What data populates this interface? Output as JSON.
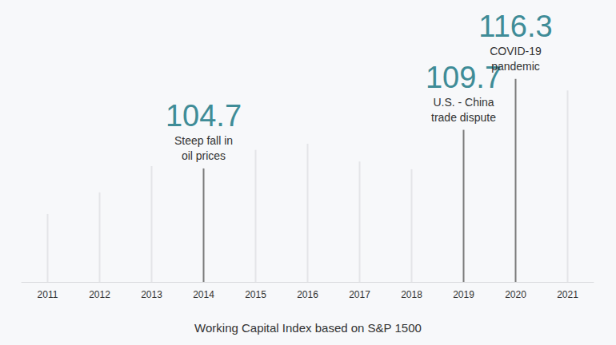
{
  "chart_data": {
    "type": "bar",
    "title": "Working Capital Index based on S&P 1500",
    "categories": [
      "2011",
      "2012",
      "2013",
      "2014",
      "2015",
      "2016",
      "2017",
      "2018",
      "2019",
      "2020",
      "2021"
    ],
    "values": [
      98.8,
      101.6,
      105.0,
      104.7,
      107.1,
      107.9,
      105.6,
      104.6,
      109.7,
      116.3,
      114.8
    ],
    "colors": [
      "#e4e5e8",
      "#e4e5e8",
      "#e4e5e8",
      "#7a7a7a",
      "#e4e5e8",
      "#e4e5e8",
      "#e4e5e8",
      "#e4e5e8",
      "#7a7a7a",
      "#7a7a7a",
      "#e4e5e8"
    ],
    "ylim": [
      90,
      120
    ],
    "tick_labels": "x",
    "grid": false,
    "annotations": [
      {
        "category": "2014",
        "text": "Steep fall in\noil prices"
      },
      {
        "category": "2019",
        "text": "U.S. - China\ntrade dispute"
      },
      {
        "category": "2020",
        "text": "COVID-19\npandemic"
      }
    ]
  }
}
